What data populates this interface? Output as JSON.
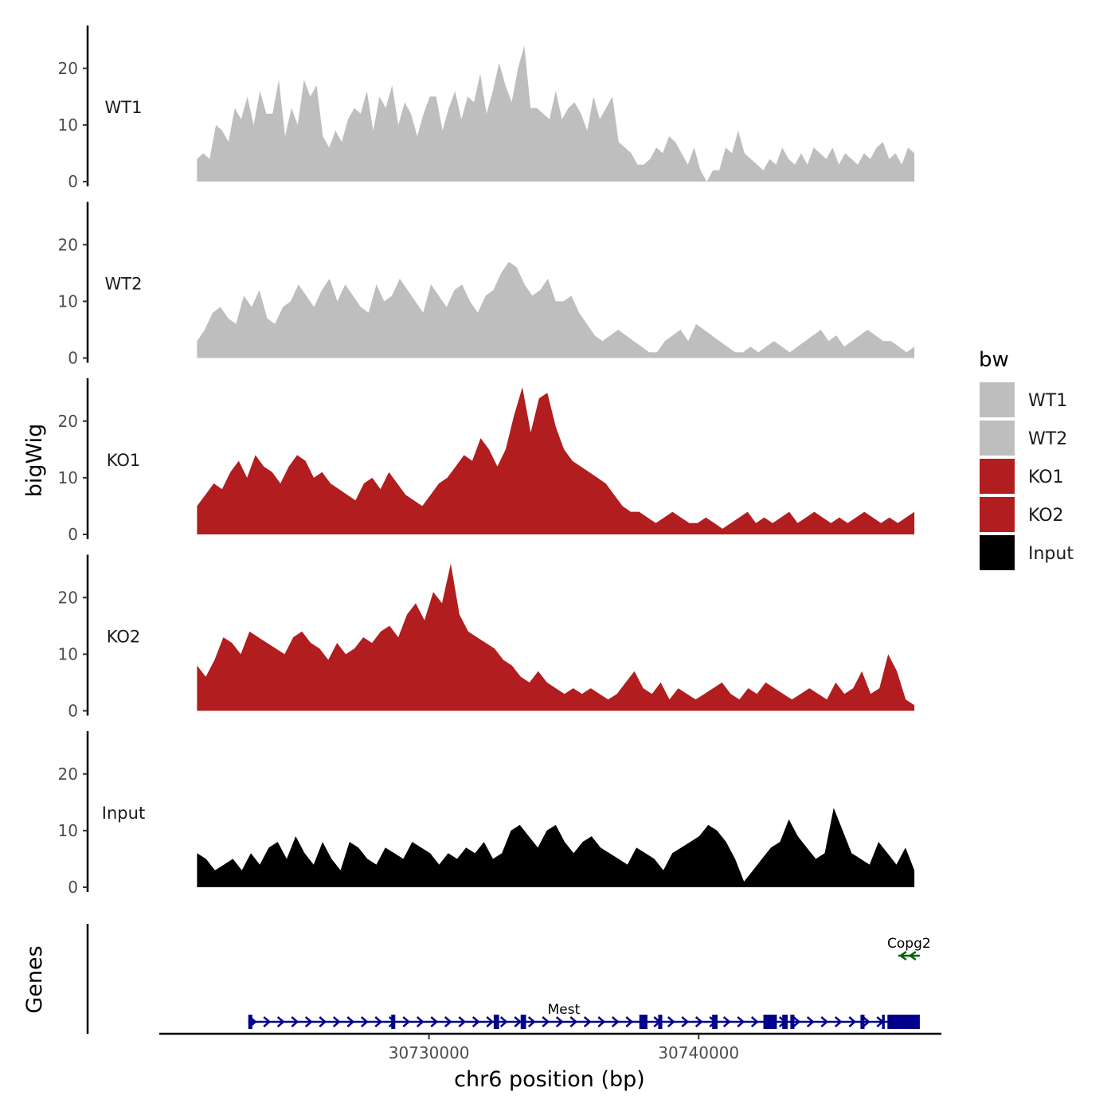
{
  "chart_data": {
    "type": "area",
    "ylabel": "bigWig",
    "xlabel": "chr6 position (bp)",
    "x_ticks": [
      30730000,
      30740000
    ],
    "x_tick_labels": [
      "30730000",
      "30740000"
    ],
    "x_range": [
      30720000,
      30749000
    ],
    "y_ticks": [
      0,
      10,
      20
    ],
    "ylim": [
      0,
      27
    ],
    "legend": {
      "title": "bw",
      "placement": "right",
      "entries": [
        {
          "label": "WT1",
          "color": "#bebebe"
        },
        {
          "label": "WT2",
          "color": "#bebebe"
        },
        {
          "label": "KO1",
          "color": "#b21d1f"
        },
        {
          "label": "KO2",
          "color": "#b21d1f"
        },
        {
          "label": "Input",
          "color": "#000000"
        }
      ]
    },
    "track_x_start": 30721400,
    "track_x_end": 30748000,
    "series": [
      {
        "name": "WT1",
        "color": "#bebebe",
        "values": [
          4,
          5,
          4,
          10,
          9,
          7,
          13,
          11,
          15,
          10,
          16,
          12,
          12,
          18,
          8,
          13,
          10,
          18,
          15,
          17,
          8,
          6,
          9,
          7,
          11,
          13,
          12,
          16,
          9,
          15,
          13,
          17,
          10,
          14,
          12,
          8,
          12,
          15,
          15,
          9,
          13,
          16,
          11,
          15,
          14,
          19,
          12,
          16,
          21,
          17,
          14,
          20,
          24,
          13,
          13,
          12,
          11,
          16,
          11,
          13,
          14,
          12,
          9,
          15,
          11,
          13,
          15,
          7,
          6,
          5,
          3,
          3,
          4,
          6,
          5,
          8,
          7,
          5,
          3,
          6,
          2,
          0,
          2,
          2,
          6,
          5,
          9,
          5,
          4,
          3,
          2,
          4,
          3,
          6,
          4,
          3,
          5,
          3,
          6,
          5,
          4,
          6,
          3,
          5,
          4,
          3,
          5,
          4,
          6,
          7,
          4,
          5,
          3,
          6,
          5
        ]
      },
      {
        "name": "WT2",
        "color": "#bebebe",
        "values": [
          3,
          5,
          8,
          9,
          7,
          6,
          11,
          9,
          12,
          7,
          6,
          9,
          10,
          13,
          11,
          9,
          12,
          14,
          10,
          13,
          11,
          9,
          8,
          13,
          10,
          11,
          14,
          12,
          10,
          8,
          13,
          11,
          9,
          12,
          13,
          10,
          8,
          11,
          12,
          15,
          17,
          16,
          13,
          11,
          12,
          14,
          10,
          10,
          11,
          8,
          6,
          4,
          3,
          4,
          5,
          4,
          3,
          2,
          1,
          1,
          3,
          4,
          5,
          3,
          6,
          5,
          4,
          3,
          2,
          1,
          1,
          2,
          1,
          2,
          3,
          2,
          1,
          2,
          3,
          4,
          5,
          3,
          4,
          2,
          3,
          4,
          5,
          4,
          3,
          3,
          2,
          1,
          2
        ]
      },
      {
        "name": "KO1",
        "color": "#b21d1f",
        "values": [
          5,
          7,
          9,
          8,
          11,
          13,
          10,
          14,
          12,
          11,
          9,
          12,
          14,
          13,
          10,
          11,
          9,
          8,
          7,
          6,
          9,
          10,
          8,
          11,
          9,
          7,
          6,
          5,
          7,
          9,
          10,
          12,
          14,
          13,
          17,
          15,
          12,
          15,
          21,
          26,
          18,
          24,
          25,
          19,
          15,
          13,
          12,
          11,
          10,
          9,
          7,
          5,
          4,
          4,
          3,
          2,
          3,
          4,
          3,
          2,
          2,
          3,
          2,
          1,
          2,
          3,
          4,
          2,
          3,
          2,
          3,
          4,
          2,
          3,
          4,
          3,
          2,
          3,
          2,
          3,
          4,
          3,
          2,
          3,
          2,
          3,
          4
        ]
      },
      {
        "name": "KO2",
        "color": "#b21d1f",
        "values": [
          8,
          6,
          9,
          13,
          12,
          10,
          14,
          13,
          12,
          11,
          10,
          13,
          14,
          12,
          11,
          9,
          12,
          10,
          11,
          13,
          12,
          14,
          15,
          13,
          17,
          19,
          16,
          21,
          19,
          26,
          17,
          14,
          13,
          12,
          11,
          9,
          8,
          6,
          5,
          7,
          5,
          4,
          3,
          4,
          3,
          4,
          3,
          2,
          3,
          5,
          7,
          4,
          3,
          5,
          2,
          4,
          3,
          2,
          3,
          4,
          5,
          3,
          2,
          4,
          3,
          5,
          4,
          3,
          2,
          3,
          4,
          3,
          2,
          5,
          3,
          4,
          7,
          3,
          4,
          10,
          7,
          2,
          1
        ]
      },
      {
        "name": "Input",
        "color": "#000000",
        "values": [
          6,
          5,
          3,
          4,
          5,
          3,
          6,
          4,
          7,
          8,
          5,
          9,
          6,
          4,
          8,
          5,
          3,
          8,
          7,
          5,
          4,
          7,
          6,
          5,
          8,
          7,
          6,
          4,
          6,
          5,
          7,
          6,
          8,
          5,
          6,
          10,
          11,
          9,
          7,
          10,
          11,
          8,
          6,
          8,
          9,
          7,
          6,
          5,
          4,
          7,
          6,
          5,
          3,
          6,
          7,
          8,
          9,
          11,
          10,
          8,
          5,
          1,
          3,
          5,
          7,
          8,
          12,
          9,
          7,
          5,
          6,
          14,
          10,
          6,
          5,
          4,
          8,
          6,
          4,
          7,
          3
        ]
      }
    ],
    "genes": [
      {
        "name": "Mest",
        "strand": "+",
        "color": "#00008b",
        "start": 30723300,
        "end": 30748200,
        "exons": [
          [
            30723300,
            30723450
          ],
          [
            30728600,
            30728750
          ],
          [
            30732400,
            30732600
          ],
          [
            30733400,
            30733600
          ],
          [
            30737800,
            30738100
          ],
          [
            30738500,
            30738650
          ],
          [
            30740500,
            30740700
          ],
          [
            30742400,
            30742900
          ],
          [
            30743100,
            30743300
          ],
          [
            30743400,
            30743550
          ],
          [
            30746000,
            30746150
          ],
          [
            30746800,
            30746900
          ],
          [
            30747000,
            30748200
          ]
        ]
      },
      {
        "name": "Copg2",
        "strand": "-",
        "color": "#006400",
        "start": 30747400,
        "end": 30748200,
        "exons": []
      }
    ],
    "genes_label": "Genes"
  }
}
